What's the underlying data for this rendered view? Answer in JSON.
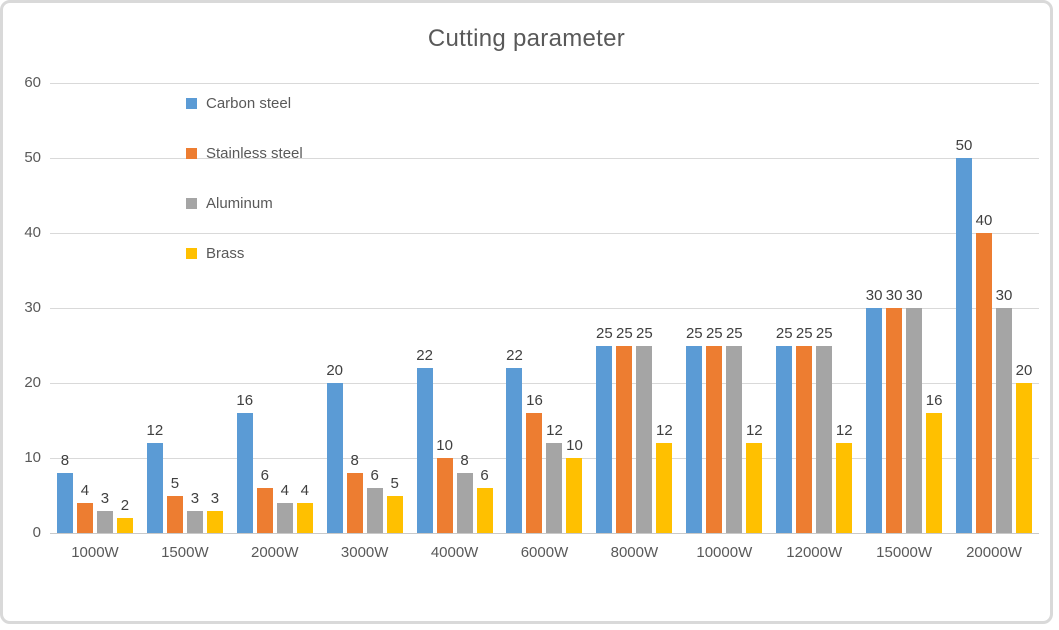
{
  "chart_data": {
    "type": "bar",
    "title": "Cutting parameter",
    "categories": [
      "1000W",
      "1500W",
      "2000W",
      "3000W",
      "4000W",
      "6000W",
      "8000W",
      "10000W",
      "12000W",
      "15000W",
      "20000W"
    ],
    "series": [
      {
        "name": "Carbon steel",
        "color": "#5B9BD5",
        "values": [
          8,
          12,
          16,
          20,
          22,
          22,
          25,
          25,
          25,
          30,
          50
        ]
      },
      {
        "name": "Stainless steel",
        "color": "#ED7D31",
        "values": [
          4,
          5,
          6,
          8,
          10,
          16,
          25,
          25,
          25,
          30,
          40
        ]
      },
      {
        "name": "Aluminum",
        "color": "#A5A5A5",
        "values": [
          3,
          3,
          4,
          6,
          8,
          12,
          25,
          25,
          25,
          30,
          30
        ]
      },
      {
        "name": "Brass",
        "color": "#FFC000",
        "values": [
          2,
          3,
          4,
          5,
          6,
          10,
          12,
          12,
          12,
          16,
          20
        ]
      }
    ],
    "ylim": [
      0,
      60
    ],
    "yticks": [
      60,
      50,
      40,
      30,
      20,
      10,
      0
    ],
    "grid": true,
    "data_labels": true,
    "legend_position": "left-overlay",
    "xlabel": "",
    "ylabel": ""
  },
  "colors": {
    "gridline": "#D9D9D9",
    "baseline": "#C9C9C9",
    "axis_text": "#595959",
    "title_text": "#595959",
    "data_label": "#404040",
    "frame_border": "#D9D9D9"
  }
}
